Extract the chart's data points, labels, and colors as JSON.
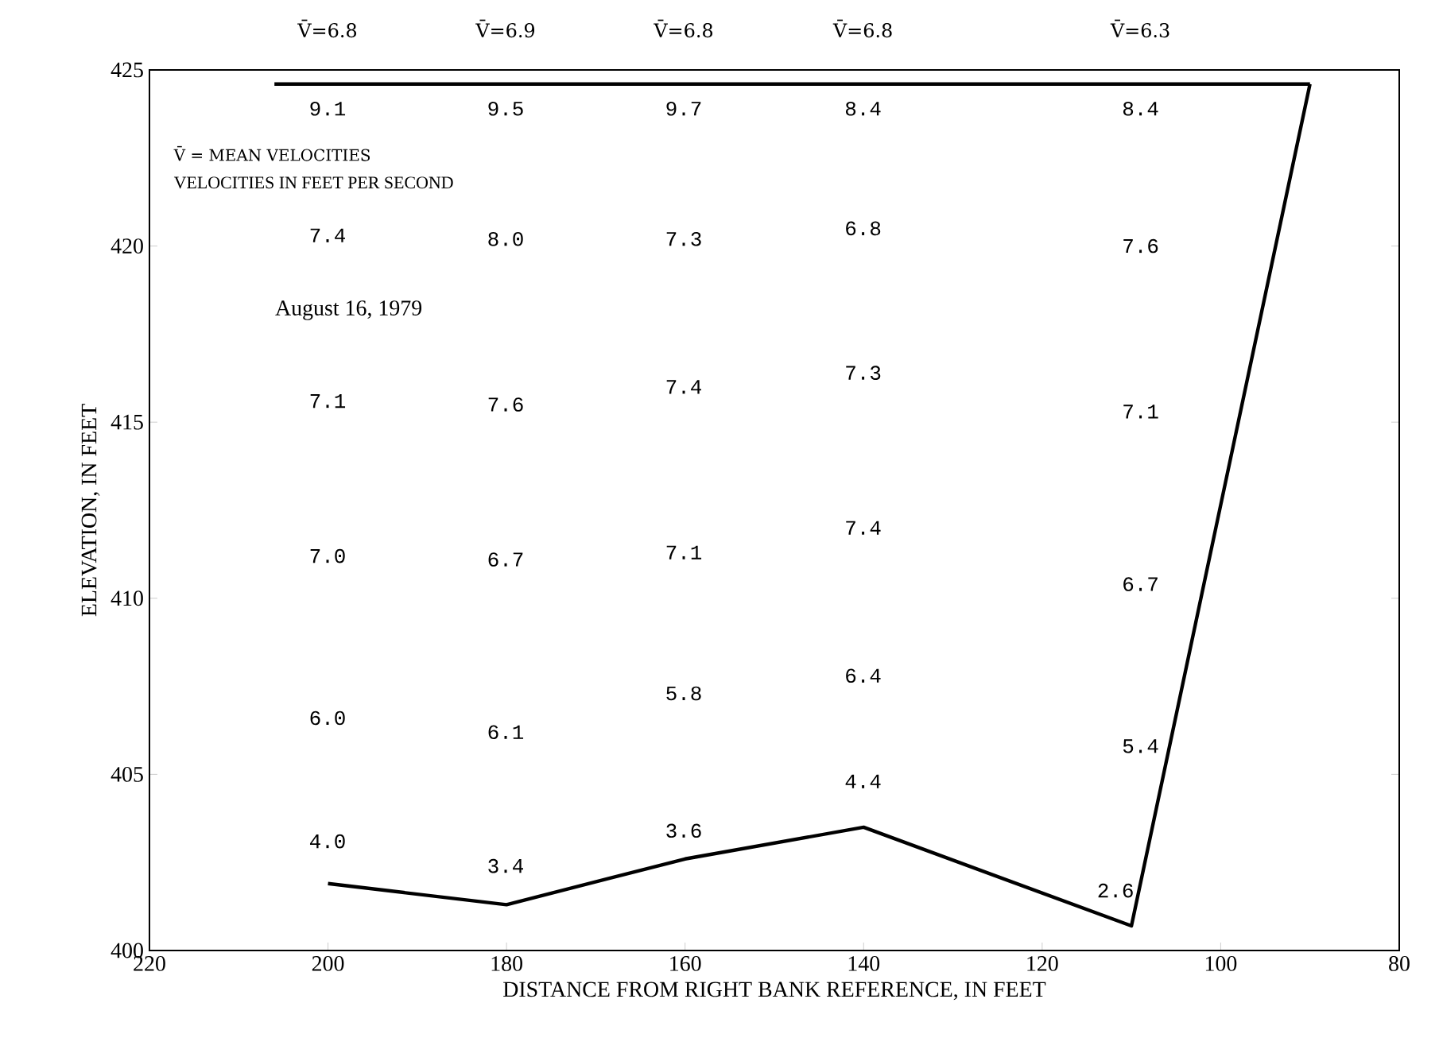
{
  "chart_data": {
    "type": "line",
    "xlabel": "DISTANCE FROM RIGHT BANK REFERENCE, IN FEET",
    "ylabel": "ELEVATION, IN FEET",
    "xlim": [
      220,
      80
    ],
    "xticks": [
      220,
      200,
      180,
      160,
      140,
      120,
      100,
      80
    ],
    "ylim": [
      400,
      425
    ],
    "yticks": [
      400,
      405,
      410,
      415,
      420,
      425
    ],
    "series": [
      {
        "color": "#000000",
        "x": [
          200,
          180,
          160,
          140,
          110,
          90
        ],
        "values": [
          401.9,
          401.3,
          402.6,
          403.5,
          400.7,
          424.6
        ]
      },
      {
        "color": "#000000",
        "x": [
          206,
          90
        ],
        "values": [
          424.6,
          424.6
        ]
      }
    ],
    "marker": "none",
    "line_style": "solid",
    "grid": false,
    "annotations": [
      "V̄=6.8",
      "V̄=6.9",
      "V̄=6.8",
      "V̄=6.8",
      "V̄=6.3",
      "V̄ = MEAN VELOCITIES",
      "VELOCITIES IN FEET PER SECOND",
      "August 16, 1979",
      "9.1",
      "7.4",
      "7.1",
      "7.0",
      "6.0",
      "4.0",
      "9.5",
      "8.0",
      "7.6",
      "6.7",
      "6.1",
      "3.4",
      "9.7",
      "7.3",
      "7.4",
      "7.1",
      "5.8",
      "3.6",
      "8.4",
      "6.8",
      "7.3",
      "7.4",
      "6.4",
      "4.4",
      "8.4",
      "7.6",
      "7.1",
      "6.7",
      "5.4",
      "2.6"
    ]
  }
}
